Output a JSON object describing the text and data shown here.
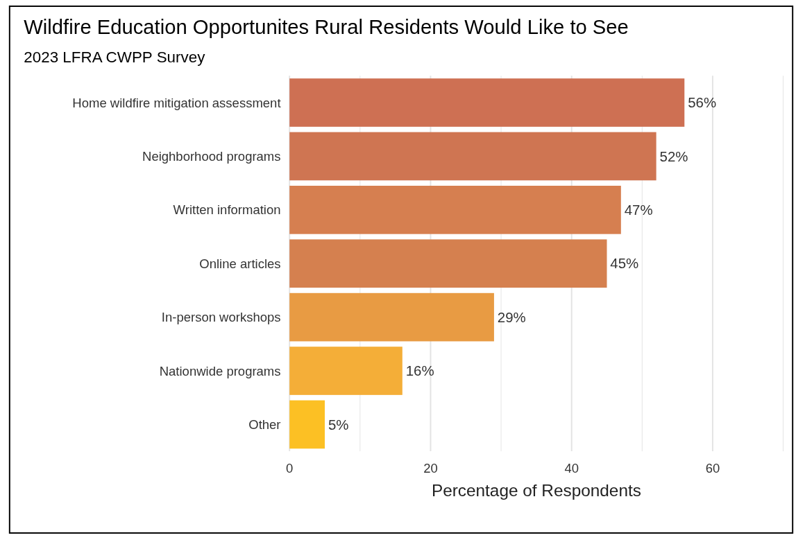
{
  "chart_data": {
    "type": "bar",
    "orientation": "horizontal",
    "title": "Wildfire Education Opportunites Rural Residents Would Like to See",
    "subtitle": "2023 LFRA CWPP Survey",
    "xlabel": "Percentage of Respondents",
    "categories": [
      "Home wildfire mitigation assessment",
      "Neighborhood programs",
      "Written information",
      "Online articles",
      "In-person workshops",
      "Nationwide programs",
      "Other"
    ],
    "values": [
      56,
      52,
      47,
      45,
      29,
      16,
      5
    ],
    "colors": [
      "#ce7053",
      "#cf7552",
      "#d67f50",
      "#d5804f",
      "#e89b43",
      "#f4ae38",
      "#fcc024"
    ],
    "value_labels": [
      "56%",
      "52%",
      "47%",
      "45%",
      "29%",
      "16%",
      "5%"
    ],
    "xlim": [
      0,
      70
    ],
    "xticks": [
      0,
      {
        "value": 10,
        "label": null
      },
      20,
      {
        "value": 30,
        "label": null
      },
      40,
      {
        "value": 50,
        "label": null
      },
      60,
      {
        "value": 70,
        "label": null
      }
    ],
    "grid": "x"
  }
}
